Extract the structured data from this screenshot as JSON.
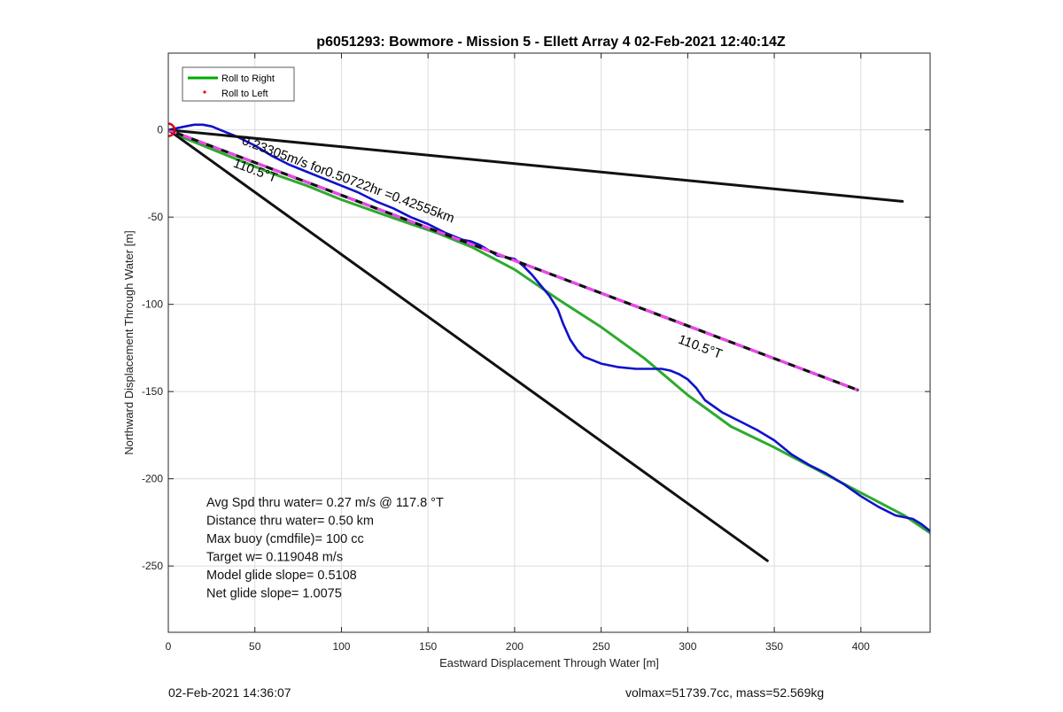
{
  "chart_data": {
    "type": "line",
    "title": "p6051293: Bowmore - Mission 5 - Ellett Array 4 02-Feb-2021 12:40:14Z",
    "xlabel": "Eastward Displacement Through Water [m]",
    "ylabel": "Northward Displacement Through Water [m]",
    "xlim": [
      0,
      440
    ],
    "ylim": [
      -288,
      44
    ],
    "x_ticks": [
      0,
      50,
      100,
      150,
      200,
      250,
      300,
      350,
      400
    ],
    "x_tick_labels": [
      "0",
      "50",
      "100",
      "150",
      "200",
      "250",
      "300",
      "350",
      "400"
    ],
    "y_ticks": [
      0,
      -50,
      -100,
      -150,
      -200,
      -250
    ],
    "y_tick_labels": [
      "0",
      "-50",
      "-100",
      "-150",
      "-200",
      "-250"
    ],
    "grid": true,
    "legend": {
      "placement": "top-left",
      "entries": [
        {
          "label": "Roll to Right",
          "color": "#00aa00",
          "marker": "line"
        },
        {
          "label": "Roll to Left",
          "color": "#ff0000",
          "marker": "dot"
        }
      ]
    },
    "series": [
      {
        "name": "Roll to Right",
        "color": "#2eaa2e",
        "x": [
          0,
          10,
          20,
          30,
          40,
          60,
          80,
          100,
          120,
          140,
          155,
          175,
          200,
          225,
          250,
          275,
          300,
          325,
          350,
          375,
          400,
          425,
          440
        ],
        "y": [
          0,
          -5,
          -9,
          -13,
          -17,
          -25,
          -32,
          -40,
          -47,
          -54,
          -59,
          -67,
          -80,
          -97,
          -113,
          -131,
          -152,
          -170,
          -182,
          -195,
          -208,
          -221,
          -231
        ]
      },
      {
        "color": "#1010cc",
        "x": [
          0,
          5,
          10,
          15,
          20,
          25,
          30,
          40,
          50,
          60,
          70,
          80,
          90,
          100,
          110,
          120,
          130,
          140,
          150,
          160,
          165,
          170,
          175,
          180,
          185,
          190,
          200,
          205,
          210,
          215,
          220,
          225,
          228,
          232,
          236,
          240,
          250,
          260,
          270,
          280,
          285,
          290,
          295,
          300,
          305,
          310,
          320,
          330,
          340,
          350,
          360,
          370,
          380,
          390,
          400,
          410,
          420,
          430,
          435,
          440
        ],
        "y": [
          0,
          1,
          2,
          3,
          3,
          2,
          0,
          -4,
          -9,
          -15,
          -20,
          -24,
          -28,
          -32,
          -36,
          -41,
          -45,
          -50,
          -54,
          -59,
          -61,
          -63,
          -64,
          -66,
          -69,
          -72,
          -74,
          -78,
          -83,
          -89,
          -95,
          -103,
          -111,
          -120,
          -126,
          -130,
          -134,
          -136,
          -137,
          -137,
          -137,
          -138,
          -140,
          -143,
          -148,
          -155,
          -162,
          -167,
          -172,
          -178,
          -186,
          -192,
          -197,
          -203,
          -210,
          -216,
          -221,
          -223,
          -226,
          -230
        ]
      },
      {
        "color": "#111111",
        "x": [
          0,
          424
        ],
        "y": [
          0,
          -41
        ]
      },
      {
        "color": "#111111",
        "x": [
          0,
          346
        ],
        "y": [
          0,
          -247
        ]
      },
      {
        "color": "#111111",
        "x": [
          0,
          398
        ],
        "y": [
          0,
          -149
        ]
      },
      {
        "color": "#ee44ee",
        "x": [
          0,
          398
        ],
        "y": [
          0,
          -149
        ]
      }
    ],
    "start_marker": {
      "x": 0,
      "y": 0,
      "color": "#dd0000"
    },
    "annotations": [
      {
        "text": "0.23305m/s for0.50722hr =0.42555km",
        "x": 42,
        "y": -8,
        "rotation": 20.5,
        "color": "#000000"
      },
      {
        "text": "110.5°T",
        "x": 37,
        "y": -21,
        "rotation": 20.5,
        "color": "#000000"
      },
      {
        "text": "110.5°T",
        "x": 294,
        "y": -122,
        "rotation": 20.5,
        "color": "#000000"
      }
    ],
    "stats": [
      "Avg Spd thru water=  0.27 m/s @ 117.8 °T",
      "Distance thru water=  0.50 km",
      "Max buoy (cmdfile)= 100 cc",
      "Target w= 0.119048 m/s",
      "Model glide slope= 0.5108",
      "Net glide slope= 1.0075"
    ]
  },
  "footer": {
    "timestamp": "02-Feb-2021 14:36:07",
    "vehicle_info": "volmax=51739.7cc, mass=52.569kg"
  }
}
